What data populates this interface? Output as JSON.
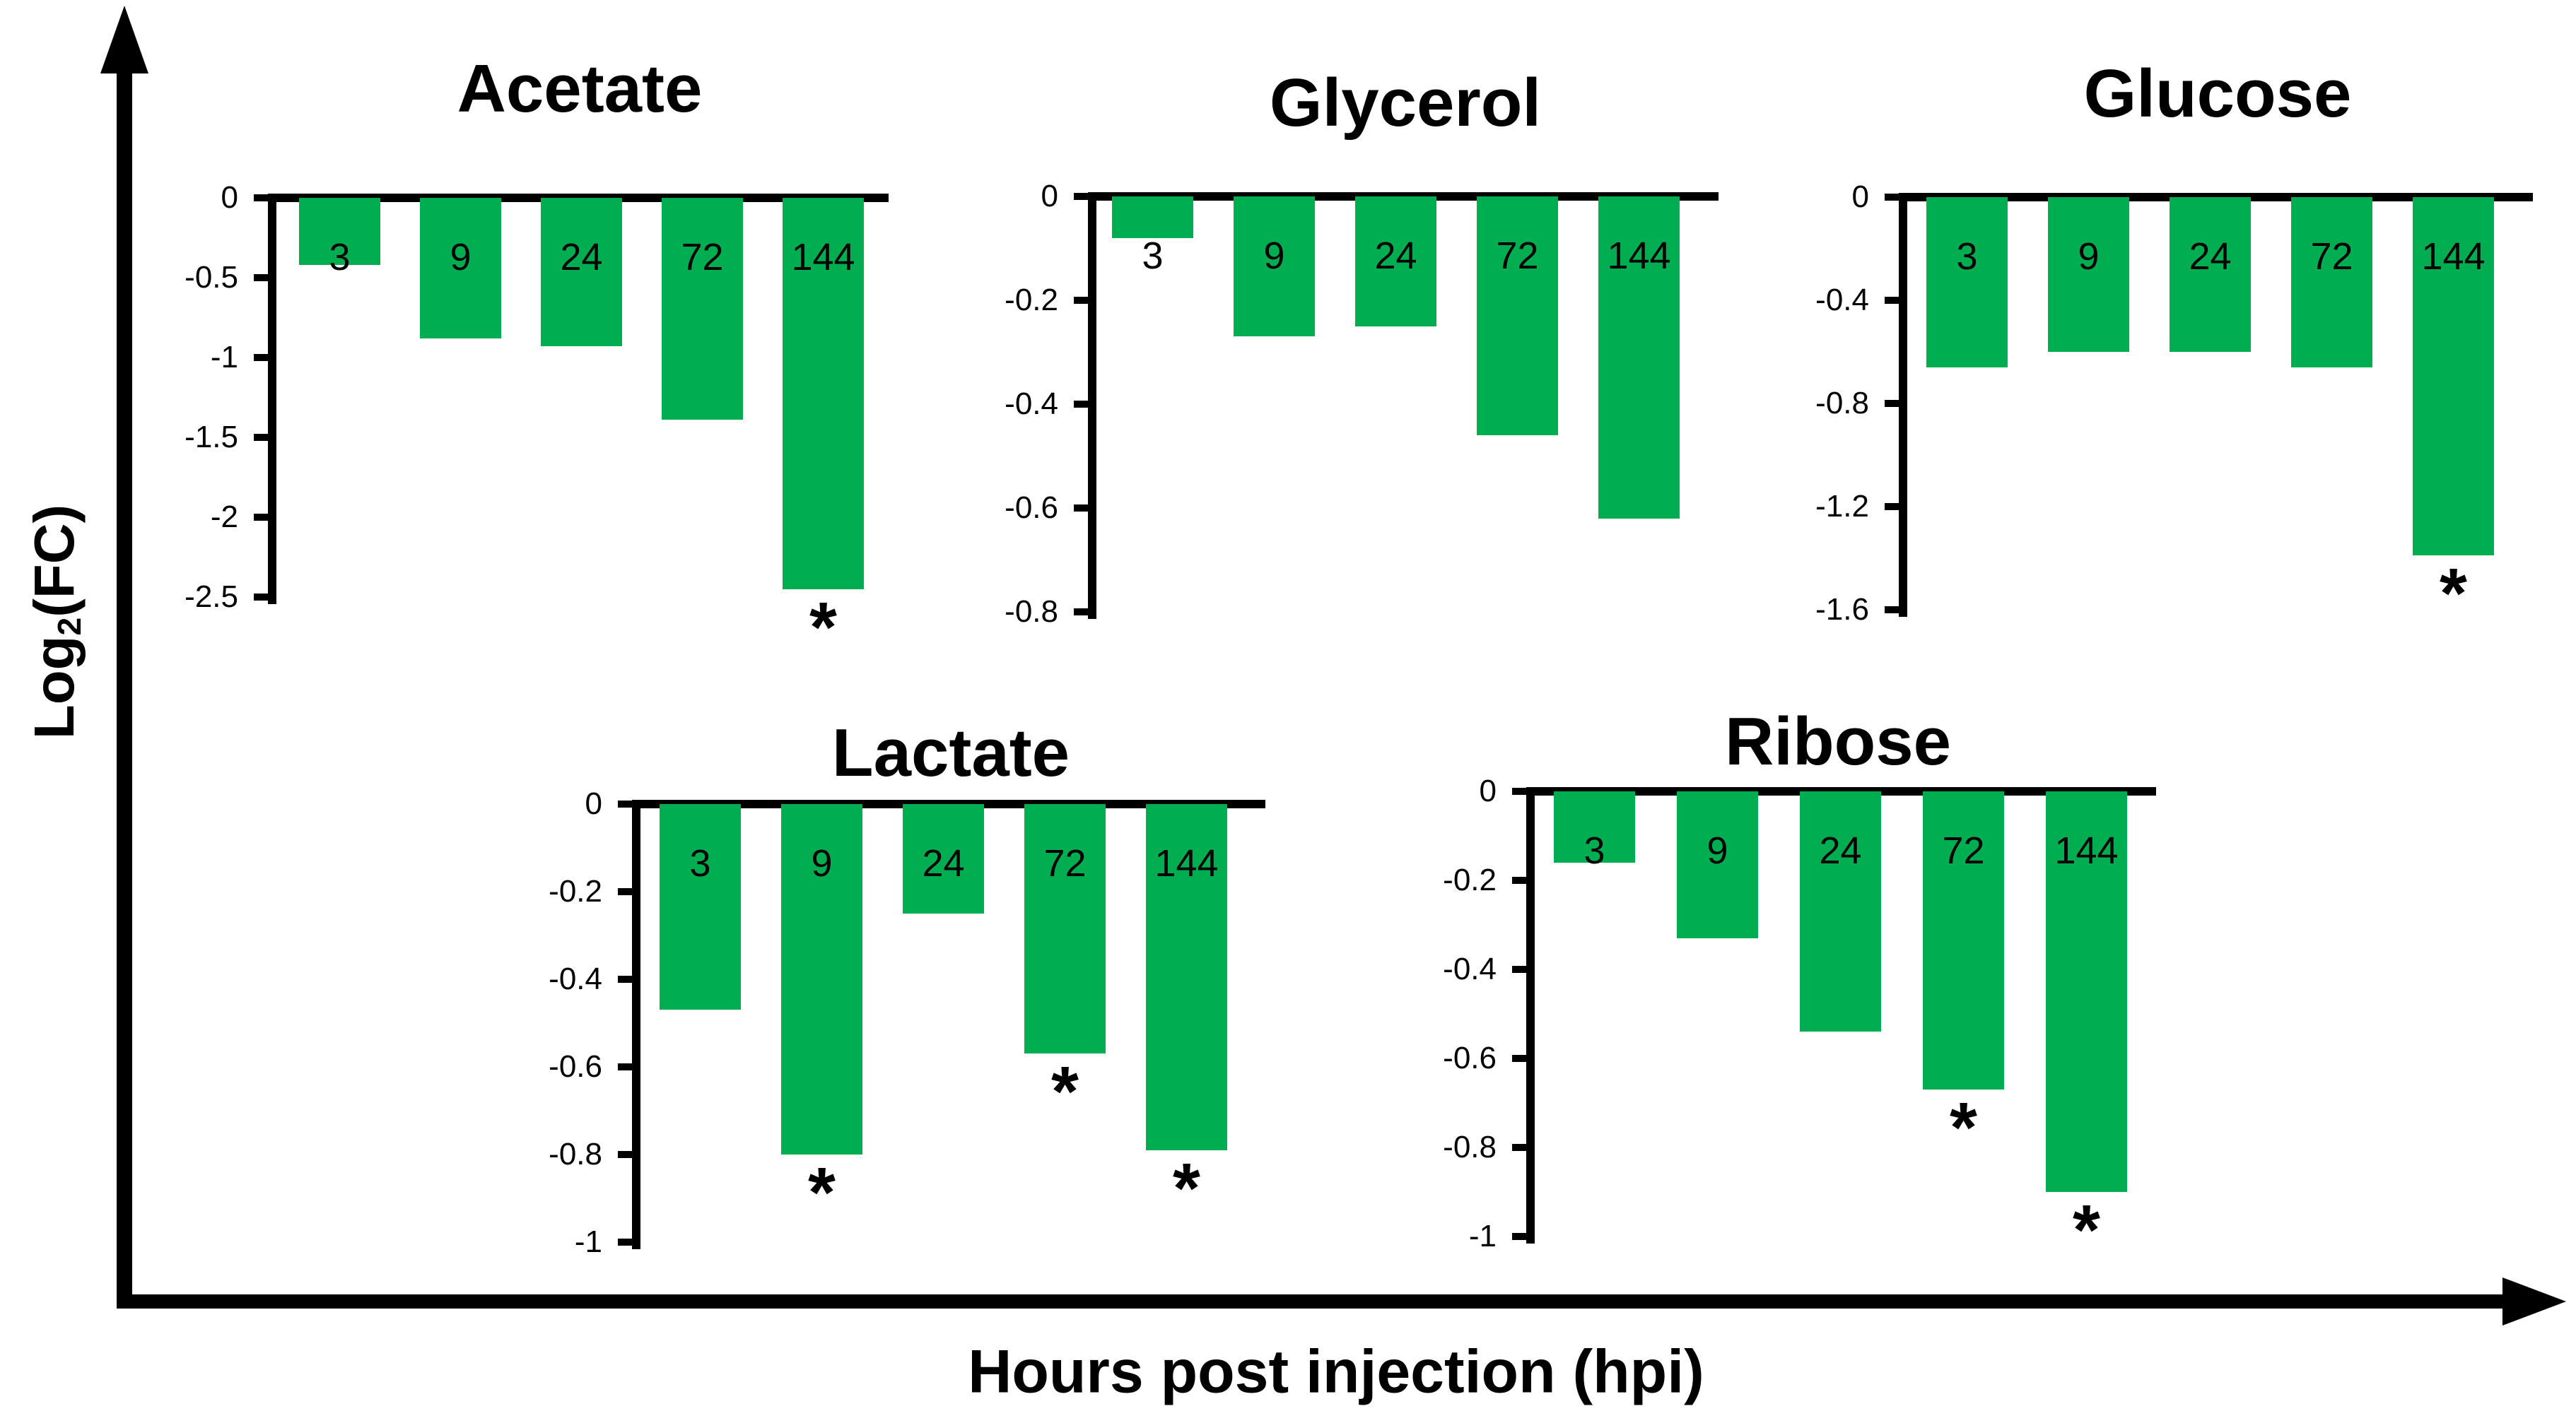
{
  "figure": {
    "y_axis_label": {
      "pre": "Log",
      "sub": "2",
      "post": "(FC)"
    },
    "x_axis_label": "Hours post injection (hpi)",
    "bar_color": "#00AD50",
    "significance_marker": "*",
    "axis_color": "#000000",
    "background_color": "#ffffff"
  },
  "chart_data": [
    {
      "id": "acetate",
      "type": "bar",
      "title": "Acetate",
      "categories": [
        "3",
        "9",
        "24",
        "72",
        "144"
      ],
      "values": [
        -0.42,
        -0.88,
        -0.93,
        -1.39,
        -2.45
      ],
      "significant": [
        false,
        false,
        false,
        false,
        true
      ],
      "ylim": [
        0,
        -2.5
      ],
      "ytick_labels": [
        "0",
        "-0.5",
        "-1",
        "-1.5",
        "-2",
        "-2.5"
      ],
      "xlabel": "Hours post injection (hpi)",
      "ylabel": "Log2(FC)",
      "grid": false,
      "legend": false
    },
    {
      "id": "glycerol",
      "type": "bar",
      "title": "Glycerol",
      "categories": [
        "3",
        "9",
        "24",
        "72",
        "144"
      ],
      "values": [
        -0.08,
        -0.27,
        -0.25,
        -0.46,
        -0.62
      ],
      "significant": [
        false,
        false,
        false,
        false,
        false
      ],
      "ylim": [
        0,
        -0.8
      ],
      "ytick_labels": [
        "0",
        "-0.2",
        "-0.4",
        "-0.6",
        "-0.8"
      ],
      "xlabel": "Hours post injection (hpi)",
      "ylabel": "Log2(FC)",
      "grid": false,
      "legend": false
    },
    {
      "id": "glucose",
      "type": "bar",
      "title": "Glucose",
      "categories": [
        "3",
        "9",
        "24",
        "72",
        "144"
      ],
      "values": [
        -0.66,
        -0.6,
        -0.6,
        -0.66,
        -1.39
      ],
      "significant": [
        false,
        false,
        false,
        false,
        true
      ],
      "ylim": [
        0,
        -1.6
      ],
      "ytick_labels": [
        "0",
        "-0.4",
        "-0.8",
        "-1.2",
        "-1.6"
      ],
      "xlabel": "Hours post injection (hpi)",
      "ylabel": "Log2(FC)",
      "grid": false,
      "legend": false
    },
    {
      "id": "lactate",
      "type": "bar",
      "title": "Lactate",
      "categories": [
        "3",
        "9",
        "24",
        "72",
        "144"
      ],
      "values": [
        -0.47,
        -0.8,
        -0.25,
        -0.57,
        -0.79
      ],
      "significant": [
        false,
        true,
        false,
        true,
        true
      ],
      "ylim": [
        0,
        -1
      ],
      "ytick_labels": [
        "0",
        "-0.2",
        "-0.4",
        "-0.6",
        "-0.8",
        "-1"
      ],
      "xlabel": "Hours post injection (hpi)",
      "ylabel": "Log2(FC)",
      "grid": false,
      "legend": false
    },
    {
      "id": "ribose",
      "type": "bar",
      "title": "Ribose",
      "categories": [
        "3",
        "9",
        "24",
        "72",
        "144"
      ],
      "values": [
        -0.16,
        -0.33,
        -0.54,
        -0.67,
        -0.9
      ],
      "significant": [
        false,
        false,
        false,
        true,
        true
      ],
      "ylim": [
        0,
        -1
      ],
      "ytick_labels": [
        "0",
        "-0.2",
        "-0.4",
        "-0.6",
        "-0.8",
        "-1"
      ],
      "xlabel": "Hours post injection (hpi)",
      "ylabel": "Log2(FC)",
      "grid": false,
      "legend": false
    }
  ]
}
